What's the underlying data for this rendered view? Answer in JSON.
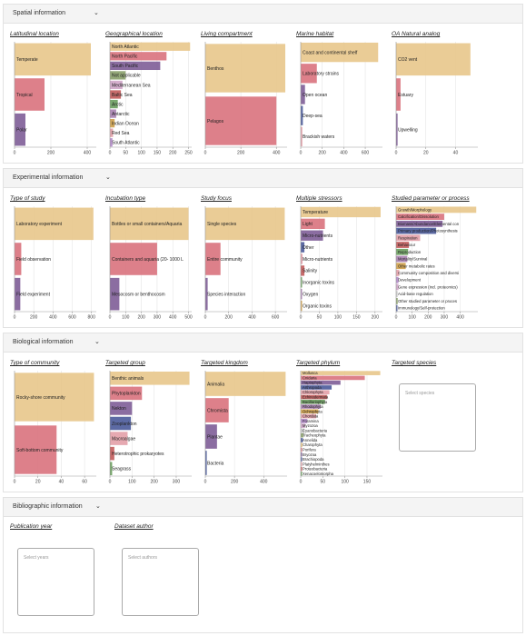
{
  "colors": {
    "orange": "#e8c68b",
    "red": "#d9727d",
    "purple": "#7e5d97",
    "green": "#8aa06b",
    "axis": "#999",
    "grid": "#e5e5e5"
  },
  "sections": [
    {
      "key": "spatial",
      "title": "Spatial information"
    },
    {
      "key": "experimental",
      "title": "Experimental information"
    },
    {
      "key": "biological",
      "title": "Biological information"
    },
    {
      "key": "bibliographic",
      "title": "Bibliographic information"
    }
  ],
  "panels": [
    {
      "key": "latitudinal",
      "title": "Latitudinal location",
      "chart_data": {
        "type": "bar",
        "orientation": "horizontal",
        "xlim": [
          0,
          450
        ],
        "xticks": [
          0,
          200,
          400
        ],
        "bars": [
          {
            "label": "Temperate",
            "value": 420,
            "color": "#e8c68b"
          },
          {
            "label": "Tropical",
            "value": 165,
            "color": "#d9727d"
          },
          {
            "label": "Polar",
            "value": 60,
            "color": "#7e5d97"
          }
        ]
      }
    },
    {
      "key": "geographical",
      "title": "Geographical location",
      "chart_data": {
        "type": "bar",
        "orientation": "horizontal",
        "xlim": [
          0,
          260
        ],
        "xticks": [
          0,
          50,
          100,
          150,
          200,
          250
        ],
        "bars": [
          {
            "label": "North Atlantic",
            "value": 255,
            "color": "#e8c68b"
          },
          {
            "label": "North Pacific",
            "value": 180,
            "color": "#d9727d"
          },
          {
            "label": "South Pacific",
            "value": 160,
            "color": "#7e5d97"
          },
          {
            "label": "Not applicable",
            "value": 50,
            "color": "#8aa06b"
          },
          {
            "label": "Mediterranean Sea",
            "value": 40,
            "color": "#d0a6c9"
          },
          {
            "label": "Baltic Sea",
            "value": 35,
            "color": "#c25b5b"
          },
          {
            "label": "Arctic",
            "value": 25,
            "color": "#6a9e5e"
          },
          {
            "label": "Antarctic",
            "value": 20,
            "color": "#a881b0"
          },
          {
            "label": "Indian Ocean",
            "value": 15,
            "color": "#cfa04a"
          },
          {
            "label": "Red Sea",
            "value": 10,
            "color": "#e3a0a8"
          },
          {
            "label": "South Atlantic",
            "value": 8,
            "color": "#b38ac9"
          }
        ]
      }
    },
    {
      "key": "compartment",
      "title": "Living compartment",
      "chart_data": {
        "type": "bar",
        "orientation": "horizontal",
        "xlim": [
          0,
          460
        ],
        "xticks": [
          0,
          200,
          400
        ],
        "bars": [
          {
            "label": "Benthos",
            "value": 450,
            "color": "#e8c68b"
          },
          {
            "label": "Pelagos",
            "value": 400,
            "color": "#d9727d"
          }
        ]
      }
    },
    {
      "key": "habitat",
      "title": "Marine habitat",
      "chart_data": {
        "type": "bar",
        "orientation": "horizontal",
        "xlim": [
          0,
          760
        ],
        "xticks": [
          0,
          200,
          400,
          600
        ],
        "bars": [
          {
            "label": "Coast and continental shelf",
            "value": 720,
            "color": "#e8c68b"
          },
          {
            "label": "Laboratory strains",
            "value": 150,
            "color": "#d9727d"
          },
          {
            "label": "Open ocean",
            "value": 40,
            "color": "#7e5d97"
          },
          {
            "label": "Deep-sea",
            "value": 20,
            "color": "#4a5a9a"
          },
          {
            "label": "Brackish waters",
            "value": 15,
            "color": "#e3a0a8"
          }
        ]
      }
    },
    {
      "key": "oa_analog",
      "title": "OA Natural analog",
      "chart_data": {
        "type": "bar",
        "orientation": "horizontal",
        "xlim": [
          0,
          55
        ],
        "xticks": [
          0,
          20,
          40
        ],
        "bars": [
          {
            "label": "CO2 vent",
            "value": 50,
            "color": "#e8c68b"
          },
          {
            "label": "Estuary",
            "value": 3,
            "color": "#d9727d"
          },
          {
            "label": "Upwelling",
            "value": 1,
            "color": "#7e5d97"
          }
        ]
      }
    },
    {
      "key": "study_type",
      "title": "Type of study",
      "chart_data": {
        "type": "bar",
        "orientation": "horizontal",
        "xlim": [
          0,
          850
        ],
        "xticks": [
          0,
          200,
          400,
          600,
          800
        ],
        "bars": [
          {
            "label": "Laboratory experiment",
            "value": 820,
            "color": "#e8c68b"
          },
          {
            "label": "Field observation",
            "value": 70,
            "color": "#d9727d"
          },
          {
            "label": "Field experiment",
            "value": 60,
            "color": "#7e5d97"
          }
        ]
      }
    },
    {
      "key": "incubation",
      "title": "Incubation type",
      "chart_data": {
        "type": "bar",
        "orientation": "horizontal",
        "xlim": [
          0,
          520
        ],
        "xticks": [
          0,
          100,
          200,
          300,
          400,
          500
        ],
        "bars": [
          {
            "label": "Bottles or small containers/Aquaria",
            "value": 500,
            "color": "#e8c68b"
          },
          {
            "label": "Containers and aquaria (20- 1000 L",
            "value": 300,
            "color": "#d9727d"
          },
          {
            "label": "Mesocosm or benthocosm",
            "value": 60,
            "color": "#7e5d97"
          }
        ]
      }
    },
    {
      "key": "focus",
      "title": "Study focus",
      "chart_data": {
        "type": "bar",
        "orientation": "horizontal",
        "xlim": [
          0,
          700
        ],
        "xticks": [
          0,
          200,
          400,
          600
        ],
        "bars": [
          {
            "label": "Single species",
            "value": 680,
            "color": "#e8c68b"
          },
          {
            "label": "Entire community",
            "value": 130,
            "color": "#d9727d"
          },
          {
            "label": "Species interaction",
            "value": 20,
            "color": "#7e5d97"
          }
        ]
      }
    },
    {
      "key": "stressors",
      "title": "Multiple stressors",
      "chart_data": {
        "type": "bar",
        "orientation": "horizontal",
        "xlim": [
          0,
          220
        ],
        "xticks": [
          0,
          50,
          100,
          150,
          200
        ],
        "bars": [
          {
            "label": "Temperature",
            "value": 215,
            "color": "#e8c68b"
          },
          {
            "label": "Light",
            "value": 65,
            "color": "#d9727d"
          },
          {
            "label": "Micro-nutrients",
            "value": 60,
            "color": "#7e5d97"
          },
          {
            "label": "Other",
            "value": 10,
            "color": "#4a5a9a"
          },
          {
            "label": "Micro-nutrients",
            "value": 5,
            "color": "#e3a0a8"
          },
          {
            "label": "Salinity",
            "value": 10,
            "color": "#c25b5b"
          },
          {
            "label": "Inorganic toxins",
            "value": 3,
            "color": "#6a9e5e"
          },
          {
            "label": "Oxygen",
            "value": 3,
            "color": "#a881b0"
          },
          {
            "label": "Organic toxins",
            "value": 2,
            "color": "#cfa04a"
          }
        ]
      }
    },
    {
      "key": "parameter",
      "title": "Studied parameter or process",
      "chart_data": {
        "type": "bar",
        "orientation": "horizontal",
        "xlim": [
          0,
          510
        ],
        "xticks": [
          0,
          100,
          200,
          300,
          400
        ],
        "bars": [
          {
            "label": "Growth/Morphology",
            "value": 500,
            "color": "#e8c68b"
          },
          {
            "label": "Calcification/Dissolution",
            "value": 300,
            "color": "#d9727d"
          },
          {
            "label": "Biomass/Abundance/Elemental con",
            "value": 290,
            "color": "#7e5d97"
          },
          {
            "label": "Primary production/Photosynthesis",
            "value": 250,
            "color": "#4a5a9a"
          },
          {
            "label": "Respiration",
            "value": 150,
            "color": "#e3a0a8"
          },
          {
            "label": "Behaviour",
            "value": 80,
            "color": "#c25b5b"
          },
          {
            "label": "Reproduction",
            "value": 75,
            "color": "#6a9e5e"
          },
          {
            "label": "Mortality/Survival",
            "value": 70,
            "color": "#a881b0"
          },
          {
            "label": "Other metabolic rates",
            "value": 60,
            "color": "#cfa04a"
          },
          {
            "label": "Community composition and diversi",
            "value": 20,
            "color": "#e3a0a8"
          },
          {
            "label": "Development",
            "value": 15,
            "color": "#b38ac9"
          },
          {
            "label": "Gene expression (incl. proteomics)",
            "value": 15,
            "color": "#d0a6c9"
          },
          {
            "label": "Acid-base regulation",
            "value": 10,
            "color": "#cccccc"
          },
          {
            "label": "Other studied parameter or proces",
            "value": 10,
            "color": "#8aa06b"
          },
          {
            "label": "Immunology/Self-protection",
            "value": 5,
            "color": "#4a5a9a"
          }
        ]
      }
    },
    {
      "key": "community",
      "title": "Type of community",
      "chart_data": {
        "type": "bar",
        "orientation": "horizontal",
        "xlim": [
          0,
          70
        ],
        "xticks": [
          0,
          20,
          40,
          60
        ],
        "bars": [
          {
            "label": "Rocky-shore community",
            "value": 68,
            "color": "#e8c68b"
          },
          {
            "label": "Soft-bottom community",
            "value": 36,
            "color": "#d9727d"
          }
        ]
      }
    },
    {
      "key": "group",
      "title": "Targeted group",
      "chart_data": {
        "type": "bar",
        "orientation": "horizontal",
        "xlim": [
          0,
          370
        ],
        "xticks": [
          0,
          100,
          200,
          300
        ],
        "bars": [
          {
            "label": "Benthic animals",
            "value": 360,
            "color": "#e8c68b"
          },
          {
            "label": "Phytoplankton",
            "value": 145,
            "color": "#d9727d"
          },
          {
            "label": "Nekton",
            "value": 100,
            "color": "#7e5d97"
          },
          {
            "label": "Zooplankton",
            "value": 95,
            "color": "#4a5a9a"
          },
          {
            "label": "Macroalgae",
            "value": 80,
            "color": "#e3a0a8"
          },
          {
            "label": "Heterotrophic prokaryotes",
            "value": 20,
            "color": "#c25b5b"
          },
          {
            "label": "Seagrass",
            "value": 10,
            "color": "#6a9e5e"
          }
        ]
      }
    },
    {
      "key": "kingdom",
      "title": "Targeted kingdom",
      "chart_data": {
        "type": "bar",
        "orientation": "horizontal",
        "xlim": [
          0,
          560
        ],
        "xticks": [
          0,
          200,
          400
        ],
        "bars": [
          {
            "label": "Animalia",
            "value": 550,
            "color": "#e8c68b"
          },
          {
            "label": "Chromista",
            "value": 160,
            "color": "#d9727d"
          },
          {
            "label": "Plantae",
            "value": 80,
            "color": "#7e5d97"
          },
          {
            "label": "Bacteria",
            "value": 10,
            "color": "#4a5a9a"
          }
        ]
      }
    },
    {
      "key": "phylum",
      "title": "Targeted phylum",
      "chart_data": {
        "type": "bar",
        "orientation": "horizontal",
        "xlim": [
          0,
          185
        ],
        "xticks": [
          0,
          50,
          100,
          150
        ],
        "bars": [
          {
            "label": "Mollusca",
            "value": 180,
            "color": "#e8c68b"
          },
          {
            "label": "Cnidaria",
            "value": 145,
            "color": "#d9727d"
          },
          {
            "label": "Haptophyta",
            "value": 90,
            "color": "#7e5d97"
          },
          {
            "label": "Arthropoda",
            "value": 70,
            "color": "#4a5a9a"
          },
          {
            "label": "Chlorophyta",
            "value": 65,
            "color": "#e3a0a8"
          },
          {
            "label": "Echinodermata",
            "value": 60,
            "color": "#c25b5b"
          },
          {
            "label": "Bacillariophyta",
            "value": 55,
            "color": "#6a9e5e"
          },
          {
            "label": "Rhodophyta",
            "value": 45,
            "color": "#a881b0"
          },
          {
            "label": "Ochrophyta",
            "value": 40,
            "color": "#cfa04a"
          },
          {
            "label": "Chordata",
            "value": 35,
            "color": "#e3a0a8"
          },
          {
            "label": "Foramina",
            "value": 15,
            "color": "#b38ac9"
          },
          {
            "label": "Myzozoa",
            "value": 10,
            "color": "#d0a6c9"
          },
          {
            "label": "Cyanobacteria",
            "value": 8,
            "color": "#cccccc"
          },
          {
            "label": "Tracheophyta",
            "value": 6,
            "color": "#8aa06b"
          },
          {
            "label": "Annelida",
            "value": 5,
            "color": "#4a5a9a"
          },
          {
            "label": "Charophyta",
            "value": 4,
            "color": "#e8c68b"
          },
          {
            "label": "Porifera",
            "value": 3,
            "color": "#d9727d"
          },
          {
            "label": "Bryozoa",
            "value": 2,
            "color": "#7e5d97"
          },
          {
            "label": "Brachiopoda",
            "value": 2,
            "color": "#4a5a9a"
          },
          {
            "label": "Platyhelminthes",
            "value": 1,
            "color": "#e3a0a8"
          },
          {
            "label": "Proteobacteria",
            "value": 1,
            "color": "#c25b5b"
          },
          {
            "label": "Xenacoelomorpha",
            "value": 1,
            "color": "#6a9e5e"
          }
        ]
      }
    }
  ],
  "targeted_species": {
    "title": "Targeted species",
    "placeholder": "Select species"
  },
  "publication_year": {
    "title": "Publication year",
    "placeholder": "Select years"
  },
  "dataset_author": {
    "title": "Dataset author",
    "placeholder": "Select authors"
  }
}
